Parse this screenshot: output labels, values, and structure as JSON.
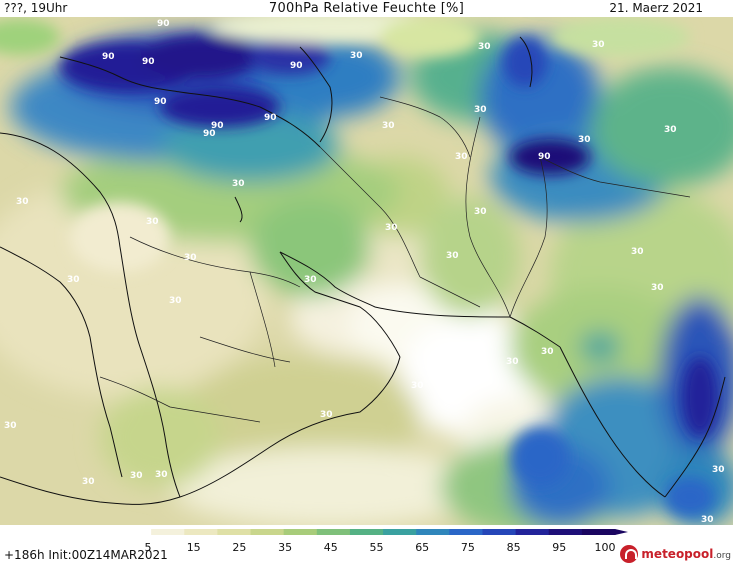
{
  "header": {
    "left": "???, 19Uhr",
    "title": "700hPa Relative Feuchte [%]",
    "date": "21. Maerz 2021"
  },
  "footer": {
    "run": "+186h  Init:00Z14MAR2021",
    "brand": "meteopool",
    "brand_suffix": ".org"
  },
  "colorbar": {
    "ticks": [
      "5",
      "15",
      "25",
      "35",
      "45",
      "55",
      "65",
      "75",
      "85",
      "95",
      "100"
    ],
    "colors": [
      "#ffffff",
      "#f4f1dc",
      "#ece8c0",
      "#dfe0a6",
      "#c9d68c",
      "#a8cc7a",
      "#7fc07a",
      "#55b184",
      "#3aa1a0",
      "#2f86bb",
      "#2a66c7",
      "#2546b8",
      "#22239a",
      "#1e0f78",
      "#1a0560"
    ]
  },
  "contour_labels": [
    "90",
    "90",
    "90",
    "90",
    "90",
    "90",
    "90",
    "90",
    "90",
    "30",
    "30",
    "30",
    "30",
    "30",
    "30",
    "30",
    "30",
    "30",
    "30",
    "30",
    "30",
    "30",
    "30",
    "30",
    "30",
    "30",
    "30",
    "30",
    "30",
    "30",
    "30",
    "30",
    "30",
    "30",
    "30",
    "30",
    "30",
    "30",
    "30"
  ]
}
